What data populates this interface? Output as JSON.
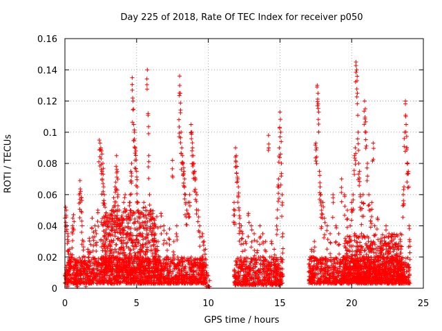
{
  "chart_data": {
    "type": "scatter",
    "title": "Day 225 of 2018, Rate Of TEC Index for receiver p050",
    "xlabel": "GPS time / hours",
    "ylabel": "ROTI / TECUs",
    "xlim": [
      0,
      25
    ],
    "ylim": [
      0,
      0.16
    ],
    "xticks": [
      0,
      5,
      10,
      15,
      20,
      25
    ],
    "yticks": [
      0,
      0.02,
      0.04,
      0.06,
      0.08,
      0.1,
      0.12,
      0.14,
      0.16
    ],
    "xtick_labels": [
      "0",
      "5",
      "10",
      "15",
      "20",
      "25"
    ],
    "ytick_labels": [
      "0",
      "0.02",
      "0.04",
      "0.06",
      "0.08",
      "0.1",
      "0.12",
      "0.14",
      "0.16"
    ],
    "grid": true,
    "marker": "+",
    "series": [
      {
        "name": "p050",
        "color": "#ff0000",
        "points": [
          [
            0.0,
            0.045
          ],
          [
            0.05,
            0.052
          ],
          [
            0.1,
            0.05
          ],
          [
            0.15,
            0.04
          ],
          [
            0.2,
            0.035
          ],
          [
            0.25,
            0.03
          ],
          [
            0.3,
            0.025
          ],
          [
            0.1,
            0.012
          ],
          [
            0.2,
            0.008
          ],
          [
            0.3,
            0.015
          ],
          [
            0.4,
            0.022
          ],
          [
            0.5,
            0.036
          ],
          [
            0.55,
            0.045
          ],
          [
            0.6,
            0.047
          ],
          [
            0.7,
            0.018
          ],
          [
            0.8,
            0.01
          ],
          [
            0.9,
            0.012
          ],
          [
            1.0,
            0.06
          ],
          [
            1.05,
            0.069
          ],
          [
            1.1,
            0.062
          ],
          [
            1.15,
            0.058
          ],
          [
            1.2,
            0.04
          ],
          [
            1.3,
            0.03
          ],
          [
            1.4,
            0.02
          ],
          [
            1.5,
            0.015
          ],
          [
            1.6,
            0.025
          ],
          [
            1.7,
            0.032
          ],
          [
            1.8,
            0.028
          ],
          [
            1.9,
            0.045
          ],
          [
            2.0,
            0.036
          ],
          [
            2.1,
            0.04
          ],
          [
            2.2,
            0.035
          ],
          [
            2.3,
            0.05
          ],
          [
            2.4,
            0.095
          ],
          [
            2.45,
            0.093
          ],
          [
            2.5,
            0.09
          ],
          [
            2.55,
            0.088
          ],
          [
            2.6,
            0.075
          ],
          [
            2.65,
            0.08
          ],
          [
            2.7,
            0.065
          ],
          [
            2.75,
            0.06
          ],
          [
            2.8,
            0.052
          ],
          [
            2.9,
            0.045
          ],
          [
            3.0,
            0.04
          ],
          [
            3.1,
            0.03
          ],
          [
            3.2,
            0.045
          ],
          [
            3.3,
            0.05
          ],
          [
            3.4,
            0.058
          ],
          [
            3.5,
            0.065
          ],
          [
            3.55,
            0.068
          ],
          [
            3.6,
            0.085
          ],
          [
            3.65,
            0.075
          ],
          [
            3.7,
            0.06
          ],
          [
            3.8,
            0.05
          ],
          [
            3.9,
            0.04
          ],
          [
            4.0,
            0.045
          ],
          [
            4.1,
            0.055
          ],
          [
            4.2,
            0.06
          ],
          [
            4.3,
            0.05
          ],
          [
            4.4,
            0.045
          ],
          [
            4.5,
            0.055
          ],
          [
            4.55,
            0.06
          ],
          [
            4.6,
            0.075
          ],
          [
            4.65,
            0.08
          ],
          [
            4.7,
            0.135
          ],
          [
            4.75,
            0.12
          ],
          [
            4.8,
            0.105
          ],
          [
            4.85,
            0.1
          ],
          [
            4.9,
            0.09
          ],
          [
            4.95,
            0.088
          ],
          [
            5.0,
            0.075
          ],
          [
            5.05,
            0.065
          ],
          [
            5.1,
            0.055
          ],
          [
            5.2,
            0.045
          ],
          [
            5.3,
            0.04
          ],
          [
            5.4,
            0.035
          ],
          [
            5.5,
            0.055
          ],
          [
            5.6,
            0.052
          ],
          [
            5.7,
            0.045
          ],
          [
            5.75,
            0.14
          ],
          [
            5.8,
            0.112
          ],
          [
            5.85,
            0.085
          ],
          [
            5.9,
            0.06
          ],
          [
            6.0,
            0.05
          ],
          [
            6.1,
            0.045
          ],
          [
            6.2,
            0.04
          ],
          [
            6.3,
            0.035
          ],
          [
            6.5,
            0.03
          ],
          [
            6.7,
            0.048
          ],
          [
            6.9,
            0.04
          ],
          [
            7.1,
            0.035
          ],
          [
            7.3,
            0.038
          ],
          [
            7.5,
            0.082
          ],
          [
            7.6,
            0.03
          ],
          [
            7.8,
            0.04
          ],
          [
            7.95,
            0.108
          ],
          [
            8.0,
            0.136
          ],
          [
            8.05,
            0.125
          ],
          [
            8.1,
            0.1
          ],
          [
            8.15,
            0.09
          ],
          [
            8.2,
            0.085
          ],
          [
            8.25,
            0.08
          ],
          [
            8.3,
            0.075
          ],
          [
            8.35,
            0.07
          ],
          [
            8.4,
            0.06
          ],
          [
            8.5,
            0.05
          ],
          [
            8.6,
            0.055
          ],
          [
            8.7,
            0.06
          ],
          [
            8.8,
            0.105
          ],
          [
            8.85,
            0.1
          ],
          [
            8.9,
            0.09
          ],
          [
            8.95,
            0.085
          ],
          [
            9.0,
            0.08
          ],
          [
            9.05,
            0.075
          ],
          [
            9.1,
            0.07
          ],
          [
            9.2,
            0.06
          ],
          [
            9.3,
            0.05
          ],
          [
            9.4,
            0.04
          ],
          [
            9.6,
            0.035
          ],
          [
            9.7,
            0.03
          ],
          [
            9.8,
            0.025
          ],
          [
            9.9,
            0.01
          ],
          [
            10.0,
            0.008
          ],
          [
            10.1,
            0.005
          ],
          [
            11.8,
            0.055
          ],
          [
            11.85,
            0.05
          ],
          [
            11.9,
            0.09
          ],
          [
            11.95,
            0.085
          ],
          [
            12.0,
            0.078
          ],
          [
            12.05,
            0.07
          ],
          [
            12.1,
            0.065
          ],
          [
            12.15,
            0.05
          ],
          [
            12.2,
            0.045
          ],
          [
            12.3,
            0.04
          ],
          [
            12.4,
            0.035
          ],
          [
            12.6,
            0.03
          ],
          [
            12.8,
            0.048
          ],
          [
            13.0,
            0.04
          ],
          [
            13.2,
            0.035
          ],
          [
            13.4,
            0.03
          ],
          [
            13.6,
            0.04
          ],
          [
            13.8,
            0.035
          ],
          [
            14.0,
            0.03
          ],
          [
            14.2,
            0.098
          ],
          [
            14.4,
            0.03
          ],
          [
            14.6,
            0.025
          ],
          [
            14.8,
            0.045
          ],
          [
            14.85,
            0.065
          ],
          [
            14.9,
            0.07
          ],
          [
            14.95,
            0.09
          ],
          [
            15.0,
            0.113
          ],
          [
            15.05,
            0.1
          ],
          [
            15.1,
            0.08
          ],
          [
            15.15,
            0.06
          ],
          [
            15.2,
            0.035
          ],
          [
            17.1,
            0.02
          ],
          [
            17.2,
            0.025
          ],
          [
            17.4,
            0.03
          ],
          [
            17.5,
            0.093
          ],
          [
            17.55,
            0.09
          ],
          [
            17.6,
            0.13
          ],
          [
            17.65,
            0.125
          ],
          [
            17.7,
            0.113
          ],
          [
            17.75,
            0.075
          ],
          [
            17.8,
            0.065
          ],
          [
            17.85,
            0.06
          ],
          [
            17.9,
            0.05
          ],
          [
            18.0,
            0.055
          ],
          [
            18.1,
            0.045
          ],
          [
            18.3,
            0.04
          ],
          [
            18.5,
            0.035
          ],
          [
            18.7,
            0.06
          ],
          [
            18.9,
            0.04
          ],
          [
            19.1,
            0.035
          ],
          [
            19.3,
            0.07
          ],
          [
            19.5,
            0.06
          ],
          [
            19.7,
            0.05
          ],
          [
            19.9,
            0.04
          ],
          [
            20.0,
            0.055
          ],
          [
            20.1,
            0.06
          ],
          [
            20.2,
            0.085
          ],
          [
            20.25,
            0.09
          ],
          [
            20.3,
            0.145
          ],
          [
            20.35,
            0.14
          ],
          [
            20.4,
            0.125
          ],
          [
            20.45,
            0.1
          ],
          [
            20.5,
            0.08
          ],
          [
            20.55,
            0.075
          ],
          [
            20.6,
            0.06
          ],
          [
            20.7,
            0.055
          ],
          [
            20.8,
            0.06
          ],
          [
            20.9,
            0.12
          ],
          [
            20.95,
            0.115
          ],
          [
            21.0,
            0.1
          ],
          [
            21.1,
            0.08
          ],
          [
            21.2,
            0.06
          ],
          [
            21.3,
            0.05
          ],
          [
            21.4,
            0.055
          ],
          [
            21.5,
            0.093
          ],
          [
            21.6,
            0.04
          ],
          [
            21.8,
            0.045
          ],
          [
            22.0,
            0.03
          ],
          [
            22.2,
            0.025
          ],
          [
            22.4,
            0.04
          ],
          [
            22.6,
            0.035
          ],
          [
            22.8,
            0.03
          ],
          [
            23.0,
            0.025
          ],
          [
            23.2,
            0.02
          ],
          [
            23.4,
            0.035
          ],
          [
            23.6,
            0.06
          ],
          [
            23.65,
            0.065
          ],
          [
            23.7,
            0.1
          ],
          [
            23.75,
            0.12
          ],
          [
            23.8,
            0.105
          ],
          [
            23.85,
            0.09
          ],
          [
            23.9,
            0.08
          ],
          [
            23.95,
            0.075
          ],
          [
            24.0,
            0.04
          ],
          [
            24.05,
            0.03
          ]
        ],
        "baseline_segments": [
          {
            "x_start": 0.0,
            "x_end": 9.9,
            "low": 0.003,
            "high": 0.02
          },
          {
            "x_start": 2.5,
            "x_end": 6.5,
            "low": 0.01,
            "high": 0.05
          },
          {
            "x_start": 11.8,
            "x_end": 15.2,
            "low": 0.002,
            "high": 0.02
          },
          {
            "x_start": 17.0,
            "x_end": 24.1,
            "low": 0.003,
            "high": 0.02
          },
          {
            "x_start": 19.5,
            "x_end": 23.5,
            "low": 0.005,
            "high": 0.035
          }
        ]
      }
    ]
  }
}
